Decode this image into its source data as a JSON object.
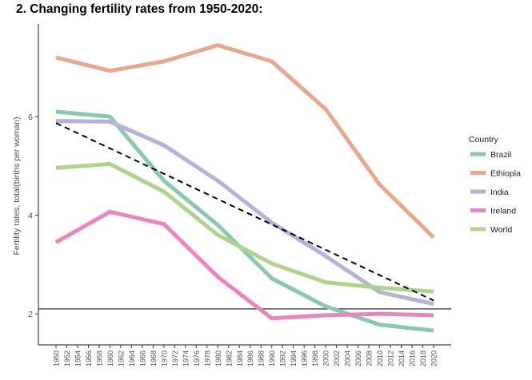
{
  "chart_data": {
    "type": "line",
    "title": "2. Changing fertility rates from 1950-2020:",
    "ylabel": "Fertility rates, total(births per woman)",
    "xlabel": "",
    "xlim": [
      1950,
      2020
    ],
    "ylim": [
      1.37,
      7.88
    ],
    "x_ticks": [
      1950,
      1952,
      1954,
      1956,
      1958,
      1960,
      1962,
      1964,
      1966,
      1968,
      1970,
      1972,
      1974,
      1976,
      1978,
      1980,
      1982,
      1984,
      1986,
      1988,
      1990,
      1992,
      1994,
      1996,
      1998,
      2000,
      2002,
      2004,
      2006,
      2008,
      2010,
      2012,
      2014,
      2016,
      2018,
      2020
    ],
    "y_ticks": [
      2,
      4,
      6
    ],
    "grid": false,
    "legend_title": "Country",
    "legend_position": "right",
    "reference_line": {
      "y": 2.1,
      "color": "#1a1a1a"
    },
    "trend_line": {
      "x": [
        1950,
        2020
      ],
      "y": [
        5.87,
        2.27
      ],
      "color": "#000000",
      "style": "dashed"
    },
    "x": [
      1950,
      1960,
      1970,
      1980,
      1990,
      2000,
      2010,
      2020
    ],
    "series": [
      {
        "name": "Brazil",
        "color": "#88c9ad",
        "values": [
          6.1,
          6.0,
          4.7,
          3.8,
          2.72,
          2.15,
          1.78,
          1.66
        ]
      },
      {
        "name": "Ethiopia",
        "color": "#e9a889",
        "values": [
          7.2,
          6.93,
          7.12,
          7.45,
          7.12,
          6.15,
          4.62,
          3.55
        ]
      },
      {
        "name": "India",
        "color": "#b7b0d8",
        "values": [
          5.91,
          5.9,
          5.42,
          4.7,
          3.85,
          3.17,
          2.44,
          2.2
        ]
      },
      {
        "name": "Ireland",
        "color": "#ec84be",
        "values": [
          3.45,
          4.07,
          3.82,
          2.75,
          1.91,
          1.97,
          2.0,
          1.97
        ]
      },
      {
        "name": "World",
        "color": "#afd38c",
        "values": [
          4.96,
          5.04,
          4.48,
          3.6,
          3.02,
          2.64,
          2.53,
          2.45
        ]
      }
    ]
  }
}
